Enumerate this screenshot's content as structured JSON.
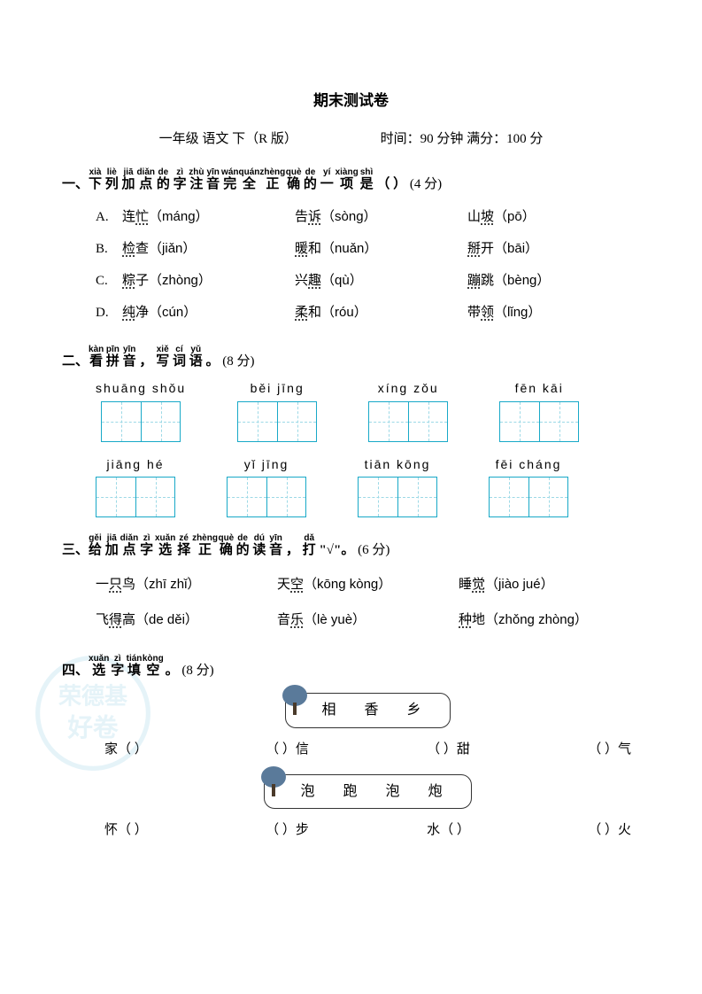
{
  "title": "期末测试卷",
  "subtitle_left": "一年级 语文 下（R 版）",
  "subtitle_right": "时间：90 分钟 满分：100 分",
  "q1": {
    "number": "一、",
    "ruby_chars": [
      "下",
      "列",
      "加",
      "点",
      "的",
      "字",
      "注",
      "音",
      "完",
      "全",
      "正",
      "确",
      "的",
      "一",
      "项",
      "是"
    ],
    "ruby_pinyin": [
      "xià",
      "liè",
      "jiā",
      "diǎn",
      "de",
      "zì",
      "zhù",
      "yīn",
      "wán",
      "quán",
      "zhèng",
      "què",
      "de",
      "yí",
      "xiàng",
      "shì"
    ],
    "tail": "（    ）",
    "score": "(4 分)",
    "options": [
      {
        "letter": "A.",
        "items": [
          {
            "t": "连忙",
            "d": "忙",
            "p": "（máng）"
          },
          {
            "t": "告诉",
            "d": "诉",
            "p": "（sòng）"
          },
          {
            "t": "山坡",
            "d": "坡",
            "p": "（pō）"
          }
        ]
      },
      {
        "letter": "B.",
        "items": [
          {
            "t": "检查",
            "d": "检",
            "p": "（jiǎn）"
          },
          {
            "t": "暖和",
            "d": "暖",
            "p": "（nuǎn）"
          },
          {
            "t": "掰开",
            "d": "掰",
            "p": "（bāi）"
          }
        ]
      },
      {
        "letter": "C.",
        "items": [
          {
            "t": "粽子",
            "d": "粽",
            "p": "（zhòng）"
          },
          {
            "t": "兴趣",
            "d": "趣",
            "p": "（qù）"
          },
          {
            "t": "蹦跳",
            "d": "蹦",
            "p": "（bèng）"
          }
        ]
      },
      {
        "letter": "D.",
        "items": [
          {
            "t": "纯净",
            "d": "纯",
            "p": "（cún）"
          },
          {
            "t": "柔和",
            "d": "柔",
            "p": "（róu）"
          },
          {
            "t": "带领",
            "d": "领",
            "p": "（lǐng）"
          }
        ]
      }
    ]
  },
  "q2": {
    "number": "二、",
    "ruby_chars": [
      "看",
      "拼",
      "音",
      "，",
      "写",
      "词",
      "语"
    ],
    "ruby_pinyin": [
      "kàn",
      "pīn",
      "yīn",
      "",
      "xiě",
      "cí",
      "yǔ"
    ],
    "tail": "。",
    "score": "(8 分)",
    "words": [
      "shuāng shǒu",
      "běi  jīng",
      "xíng  zǒu",
      "fēn  kāi",
      "jiāng  hé",
      "yǐ  jīng",
      "tiān  kōng",
      "fēi cháng"
    ]
  },
  "q3": {
    "number": "三、",
    "ruby_chars": [
      "给",
      "加",
      "点",
      "字",
      "选",
      "择",
      "正",
      "确",
      "的",
      "读",
      "音",
      "，",
      "打"
    ],
    "ruby_pinyin": [
      "gěi",
      "jiā",
      "diǎn",
      "zì",
      "xuǎn",
      "zé",
      "zhèng",
      "què",
      "de",
      "dú",
      "yīn",
      "",
      "dǎ"
    ],
    "tail": "\"√\"。",
    "score": "(6 分)",
    "rows": [
      [
        {
          "t": "一只鸟",
          "d": "只",
          "p": "（zhī  zhǐ）"
        },
        {
          "t": "天空",
          "d": "空",
          "p": "（kōng  kòng）"
        },
        {
          "t": "睡觉",
          "d": "觉",
          "p": "（jiào  jué）"
        }
      ],
      [
        {
          "t": "飞得高",
          "d": "得",
          "p": "（de  děi）"
        },
        {
          "t": "音乐",
          "d": "乐",
          "p": "（lè  yuè）"
        },
        {
          "t": "种地",
          "d": "种",
          "p": "（zhǒng  zhòng）"
        }
      ]
    ]
  },
  "q4": {
    "number": "四、",
    "ruby_chars": [
      "选",
      "字",
      "填",
      "空"
    ],
    "ruby_pinyin": [
      "xuǎn",
      "zì",
      "tián",
      "kòng"
    ],
    "tail": "。",
    "score": "(8 分)",
    "bank1": "相 香 乡",
    "row1": [
      "家（    ）",
      "（    ）信",
      "（    ）甜",
      "（    ）气"
    ],
    "bank2": "泡 跑 泡 炮",
    "row2": [
      "怀（    ）",
      "（    ）步",
      "水（    ）",
      "（    ）火"
    ]
  },
  "colors": {
    "box_border": "#18a9c8",
    "box_dash": "#9dd9e6",
    "text": "#000000",
    "bg": "#ffffff",
    "watermark": "#7fc5e0"
  }
}
